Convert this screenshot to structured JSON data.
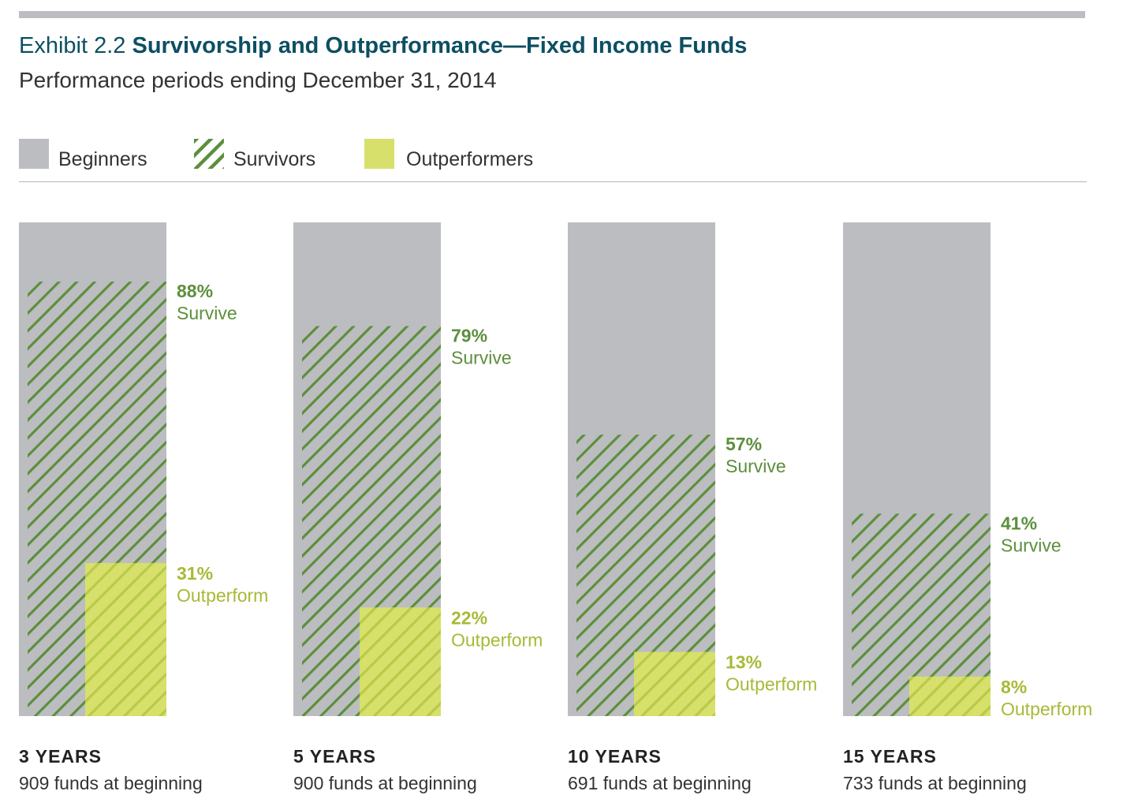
{
  "colors": {
    "title": "#0d4f63",
    "beginners": "#bcbdc0",
    "survivors_stripe": "#5c8f3c",
    "outperformers": "#d6e06a",
    "outperform_text": "#a9b937"
  },
  "header": {
    "exhibit": "Exhibit 2.2",
    "title": "Survivorship and Outperformance—Fixed Income Funds",
    "subtitle": "Performance periods ending December 31, 2014"
  },
  "legend": {
    "beginners": "Beginners",
    "survivors": "Survivors",
    "outperformers": "Outperformers"
  },
  "chart_data": {
    "type": "bar",
    "categories": [
      "3 YEARS",
      "5 YEARS",
      "10 YEARS",
      "15 YEARS"
    ],
    "funds_at_beginning": [
      "909 funds at beginning",
      "900 funds at beginning",
      "691 funds at beginning",
      "733 funds at beginning"
    ],
    "series": [
      {
        "name": "Beginners",
        "values": [
          100,
          100,
          100,
          100
        ]
      },
      {
        "name": "Survivors",
        "values": [
          88,
          79,
          57,
          41
        ]
      },
      {
        "name": "Outperformers",
        "values": [
          31,
          22,
          13,
          8
        ]
      }
    ],
    "survive_labels": [
      "88%",
      "79%",
      "57%",
      "41%"
    ],
    "survive_word": "Survive",
    "outperform_labels": [
      "31%",
      "22%",
      "13%",
      "8%"
    ],
    "outperform_word": "Outperform",
    "ylim": [
      0,
      100
    ],
    "legend_position": "top-left",
    "grid": false
  }
}
